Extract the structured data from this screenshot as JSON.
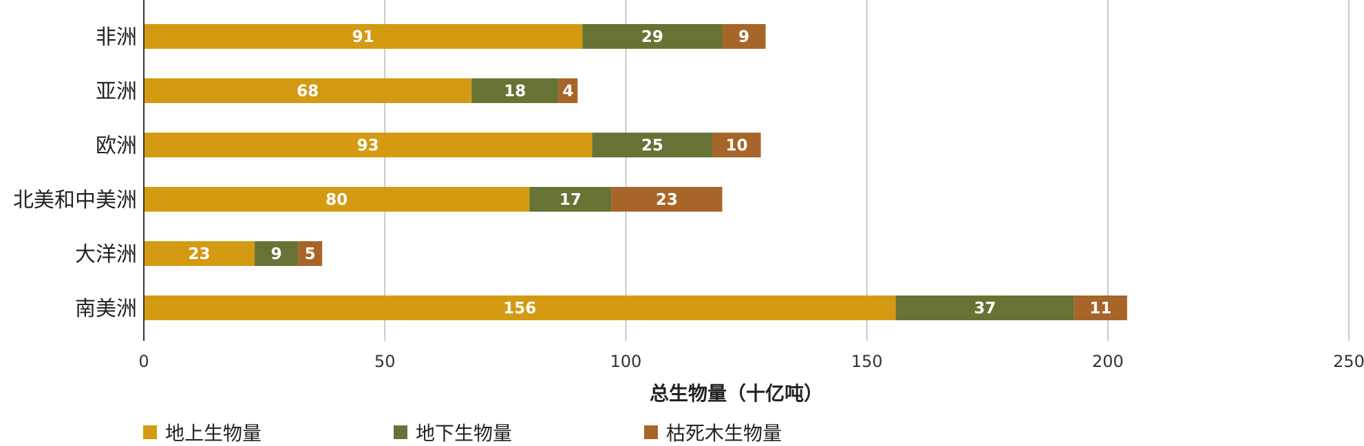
{
  "chart_data": {
    "type": "bar",
    "orientation": "horizontal",
    "stacked": true,
    "categories": [
      "非洲",
      "亚洲",
      "欧洲",
      "北美和中美洲",
      "大洋洲",
      "南美洲"
    ],
    "series": [
      {
        "name": "地上生物量",
        "color": "#D39A12",
        "values": [
          91,
          68,
          93,
          80,
          23,
          156
        ]
      },
      {
        "name": "地下生物量",
        "color": "#677335",
        "values": [
          29,
          18,
          25,
          17,
          9,
          37
        ]
      },
      {
        "name": "枯死木生物量",
        "color": "#A8652A",
        "values": [
          9,
          4,
          10,
          23,
          5,
          11
        ]
      }
    ],
    "xlabel": "总生物量（十亿吨）",
    "xlim": [
      0,
      250
    ],
    "xticks": [
      "0",
      "50",
      "100",
      "150",
      "200",
      "250"
    ],
    "grid": true,
    "legend_position": "bottom"
  }
}
